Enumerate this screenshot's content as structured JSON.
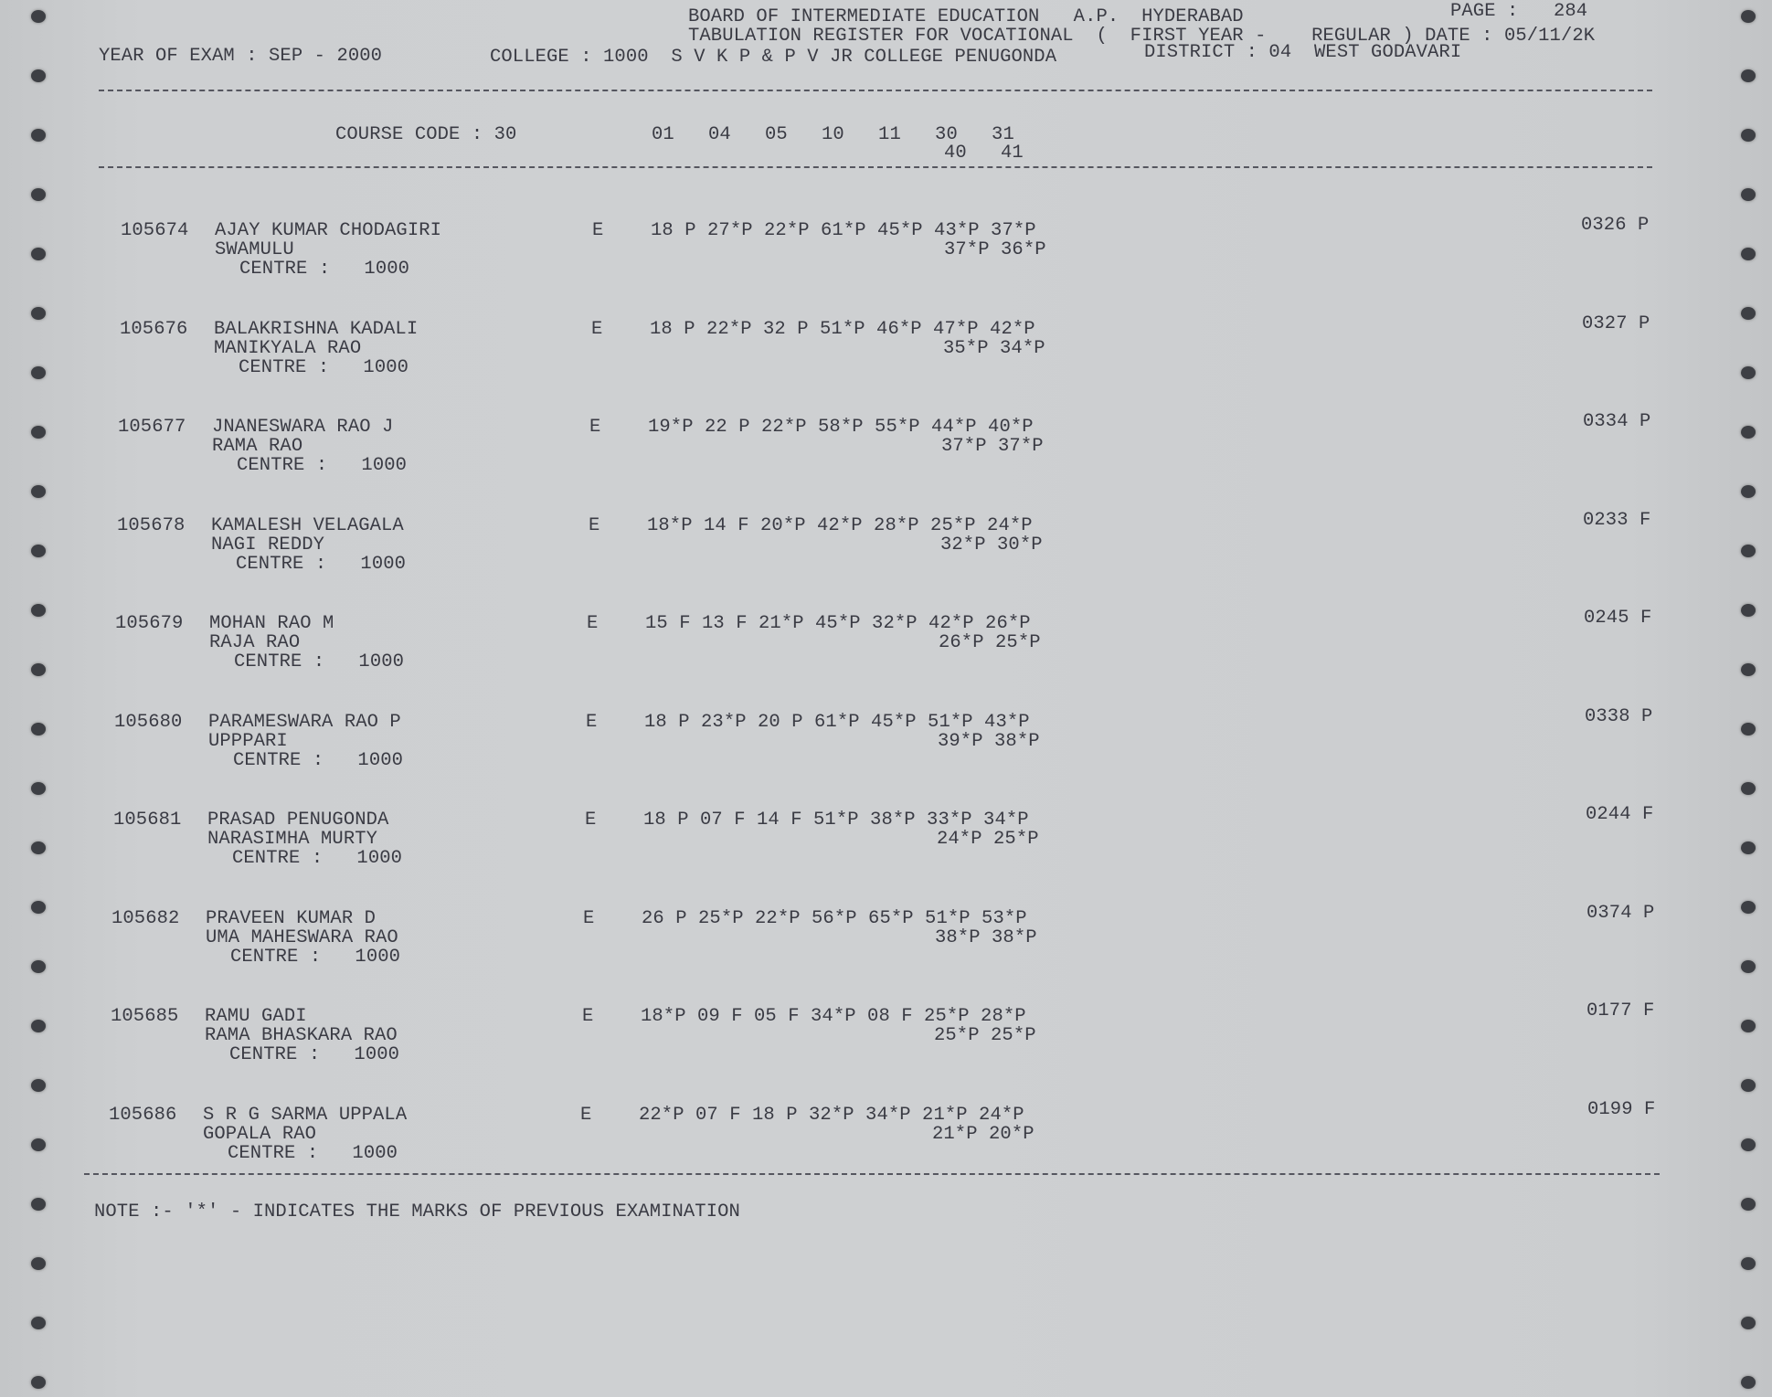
{
  "header": {
    "board": "BOARD OF INTERMEDIATE EDUCATION   A.P.  HYDERABAD",
    "page_label": "PAGE :",
    "page_number": "284",
    "register": "TABULATION REGISTER FOR VOCATIONAL  (  FIRST YEAR -    REGULAR ) DATE : 05/11/2K",
    "year_of_exam": "YEAR OF EXAM : SEP - 2000",
    "college": "COLLEGE : 1000  S V K P & P V JR COLLEGE PENUGONDA",
    "district": "DISTRICT : 04  WEST GODAVARI"
  },
  "columns": {
    "course_code": "COURSE CODE : 30",
    "subjects_line1": "01   04   05   10   11   30   31",
    "subjects_line2": "40   41"
  },
  "students": [
    {
      "roll": "105674",
      "name": "AJAY KUMAR CHODAGIRI",
      "name2": "SWAMULU",
      "centre": "CENTRE :   1000",
      "code": "E",
      "marks1": "18 P 27*P 22*P 61*P 45*P 43*P 37*P",
      "marks2": "37*P 36*P",
      "total": "0326 P"
    },
    {
      "roll": "105676",
      "name": "BALAKRISHNA KADALI",
      "name2": "MANIKYALA RAO",
      "centre": "CENTRE :   1000",
      "code": "E",
      "marks1": "18 P 22*P 32 P 51*P 46*P 47*P 42*P",
      "marks2": "35*P 34*P",
      "total": "0327 P"
    },
    {
      "roll": "105677",
      "name": "JNANESWARA RAO J",
      "name2": "RAMA RAO",
      "centre": "CENTRE :   1000",
      "code": "E",
      "marks1": "19*P 22 P 22*P 58*P 55*P 44*P 40*P",
      "marks2": "37*P 37*P",
      "total": "0334 P"
    },
    {
      "roll": "105678",
      "name": "KAMALESH VELAGALA",
      "name2": "NAGI REDDY",
      "centre": "CENTRE :   1000",
      "code": "E",
      "marks1": "18*P 14 F 20*P 42*P 28*P 25*P 24*P",
      "marks2": "32*P 30*P",
      "total": "0233 F"
    },
    {
      "roll": "105679",
      "name": "MOHAN RAO M",
      "name2": "RAJA RAO",
      "centre": "CENTRE :   1000",
      "code": "E",
      "marks1": "15 F 13 F 21*P 45*P 32*P 42*P 26*P",
      "marks2": "26*P 25*P",
      "total": "0245 F"
    },
    {
      "roll": "105680",
      "name": "PARAMESWARA RAO P",
      "name2": "UPPPARI",
      "centre": "CENTRE :   1000",
      "code": "E",
      "marks1": "18 P 23*P 20 P 61*P 45*P 51*P 43*P",
      "marks2": "39*P 38*P",
      "total": "0338 P"
    },
    {
      "roll": "105681",
      "name": "PRASAD PENUGONDA",
      "name2": "NARASIMHA MURTY",
      "centre": "CENTRE :   1000",
      "code": "E",
      "marks1": "18 P 07 F 14 F 51*P 38*P 33*P 34*P",
      "marks2": "24*P 25*P",
      "total": "0244 F"
    },
    {
      "roll": "105682",
      "name": "PRAVEEN KUMAR D",
      "name2": "UMA MAHESWARA RAO",
      "centre": "CENTRE :   1000",
      "code": "E",
      "marks1": "26 P 25*P 22*P 56*P 65*P 51*P 53*P",
      "marks2": "38*P 38*P",
      "total": "0374 P"
    },
    {
      "roll": "105685",
      "name": "RAMU GADI",
      "name2": "RAMA BHASKARA RAO",
      "centre": "CENTRE :   1000",
      "code": "E",
      "marks1": "18*P 09 F 05 F 34*P 08 F 25*P 28*P",
      "marks2": "25*P 25*P",
      "total": "0177 F"
    },
    {
      "roll": "105686",
      "name": "S R G SARMA UPPALA",
      "name2": "GOPALA RAO",
      "centre": "CENTRE :   1000",
      "code": "E",
      "marks1": "22*P 07 F 18 P 32*P 34*P 21*P 24*P",
      "marks2": "21*P 20*P",
      "total": "0199 F"
    }
  ],
  "note": "NOTE :- '*' - INDICATES THE MARKS OF PREVIOUS EXAMINATION"
}
